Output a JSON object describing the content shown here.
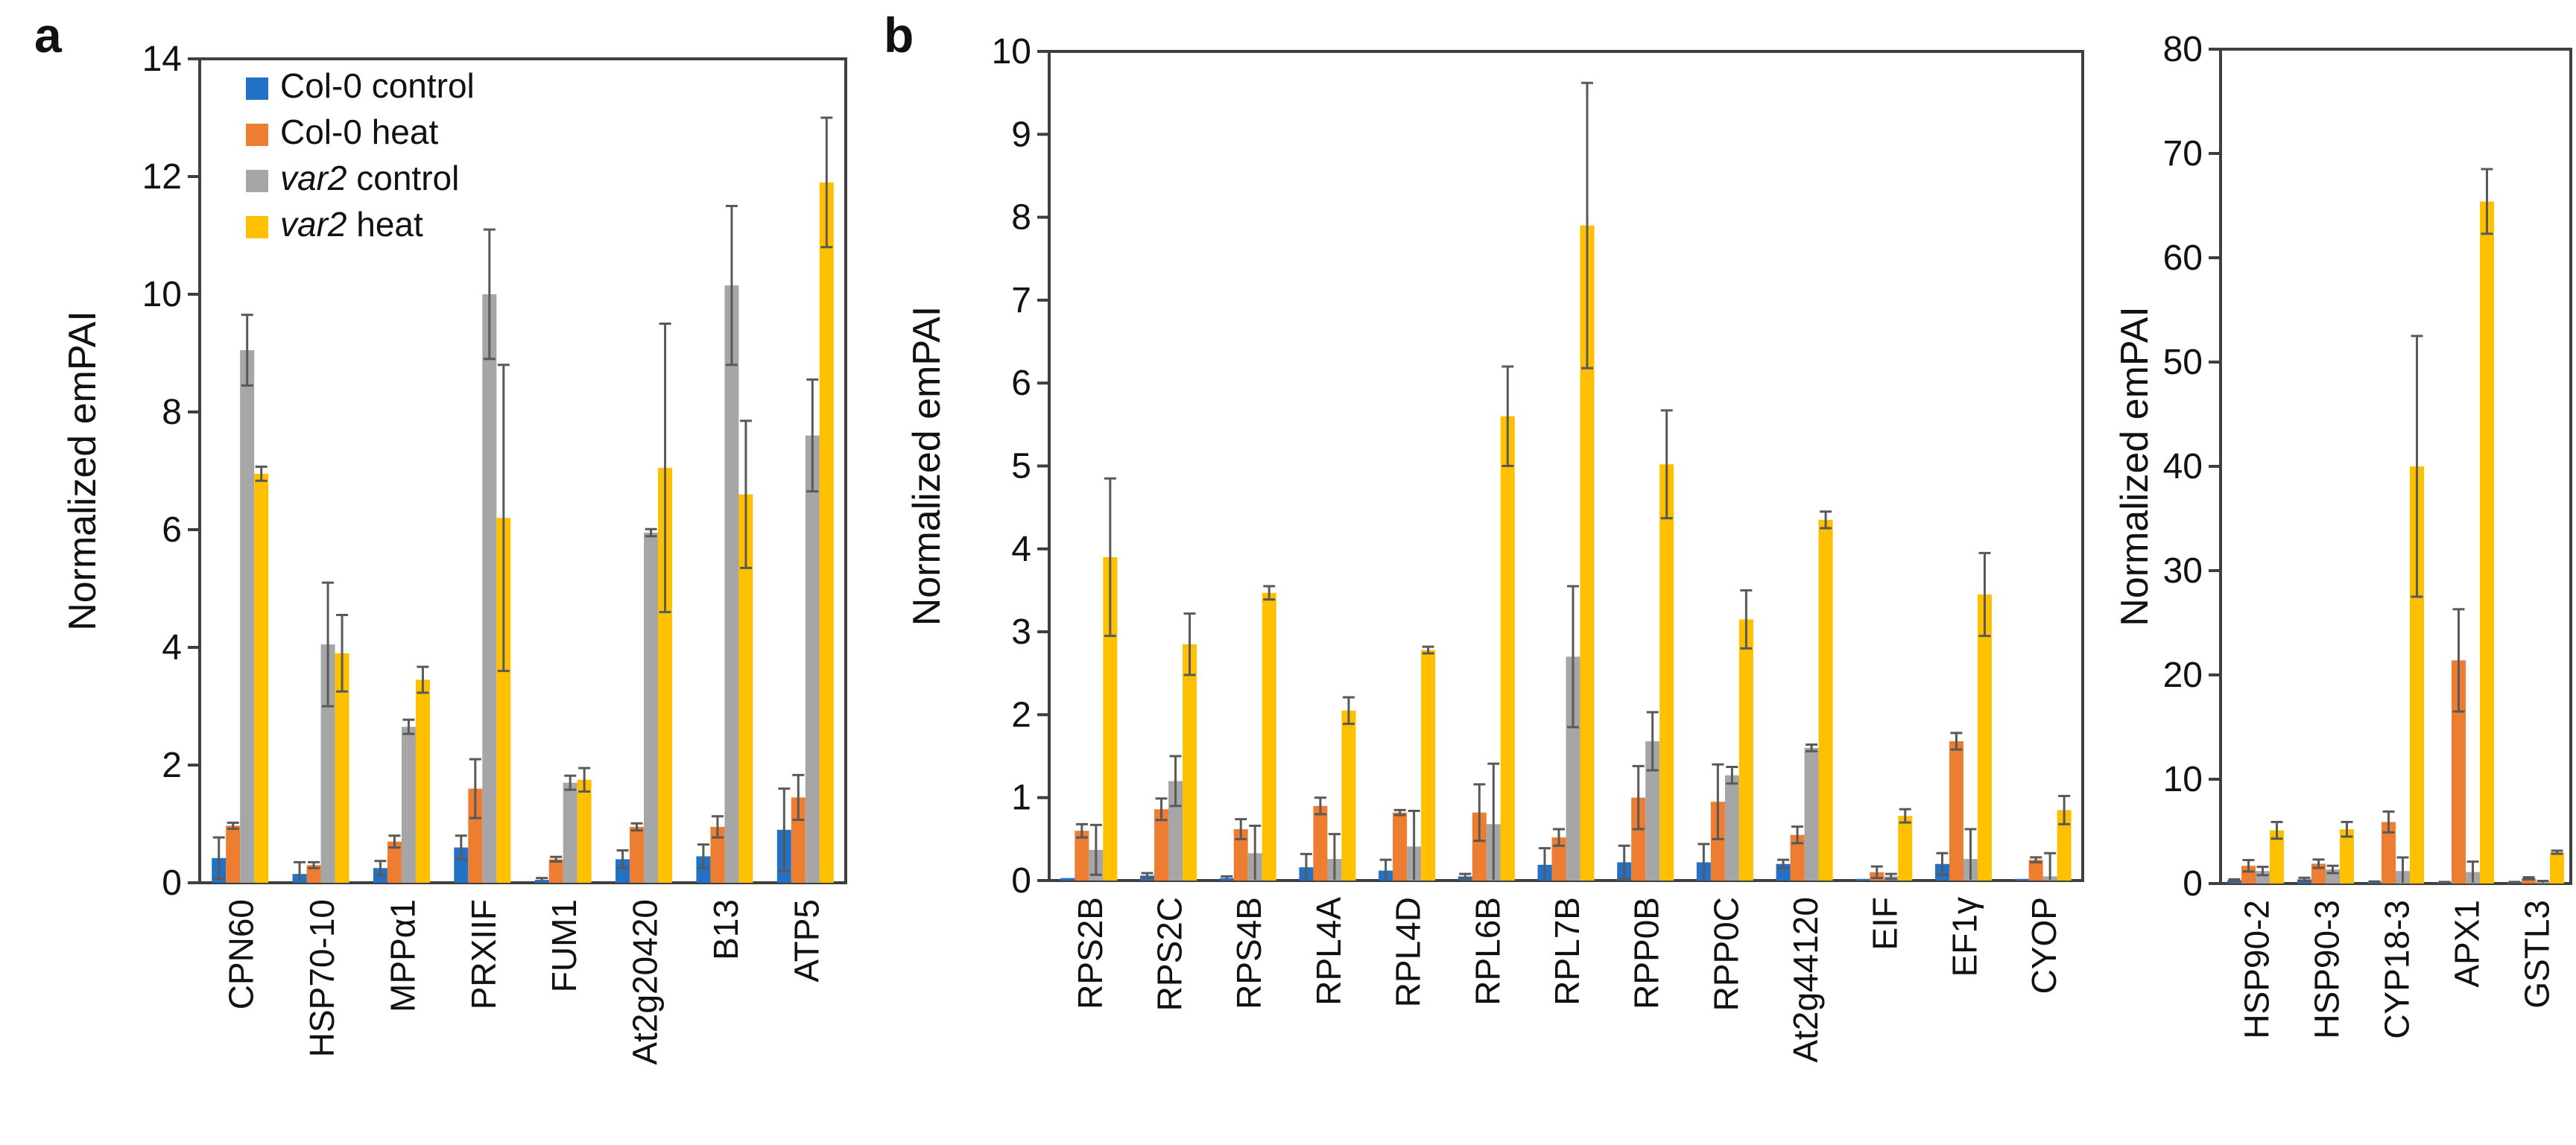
{
  "figure": {
    "background": "#ffffff",
    "panels": {
      "a": {
        "label": "a"
      },
      "b": {
        "label": "b"
      }
    }
  },
  "colors": {
    "col0_control": "#2271C7",
    "col0_heat": "#ED7D31",
    "var2_control": "#A6A6A6",
    "var2_heat": "#FFC000",
    "error_bar": "#595959",
    "axis": "#3F3F3F",
    "text": "#111111"
  },
  "legend": {
    "items": [
      {
        "italic": "",
        "text": "Col-0 control",
        "series": "col0_control"
      },
      {
        "italic": "",
        "text": "Col-0 heat",
        "series": "col0_heat"
      },
      {
        "italic": "var2",
        "text": " control",
        "series": "var2_control"
      },
      {
        "italic": "var2",
        "text": " heat",
        "series": "var2_heat"
      }
    ]
  },
  "chart_data": [
    {
      "id": "panel-a",
      "type": "bar",
      "title": "",
      "xlabel": "",
      "ylabel": "Normalized emPAI",
      "ylim": [
        0,
        14
      ],
      "ytick_step": 2,
      "grid": false,
      "legend_position": "top-left",
      "categories": [
        "CPN60",
        "HSP70-10",
        "MPPα1",
        "PRXIIF",
        "FUM1",
        "At2g20420",
        "B13",
        "ATP5"
      ],
      "series": [
        {
          "name": "Col-0 control",
          "color_key": "col0_control",
          "values": [
            0.42,
            0.15,
            0.25,
            0.6,
            0.05,
            0.4,
            0.45,
            0.9
          ],
          "errors": [
            0.35,
            0.2,
            0.12,
            0.2,
            0.03,
            0.15,
            0.2,
            0.7
          ]
        },
        {
          "name": "Col-0 heat",
          "color_key": "col0_heat",
          "values": [
            0.97,
            0.3,
            0.7,
            1.6,
            0.4,
            0.95,
            0.95,
            1.45
          ],
          "errors": [
            0.05,
            0.05,
            0.1,
            0.5,
            0.04,
            0.06,
            0.18,
            0.38
          ]
        },
        {
          "name": "var2 control",
          "color_key": "var2_control",
          "values": [
            9.05,
            4.05,
            2.65,
            10.0,
            1.7,
            5.95,
            10.15,
            7.6
          ],
          "errors": [
            0.6,
            1.05,
            0.12,
            1.1,
            0.12,
            0.06,
            1.35,
            0.95
          ]
        },
        {
          "name": "var2 heat",
          "color_key": "var2_heat",
          "values": [
            6.95,
            3.9,
            3.45,
            6.2,
            1.75,
            7.05,
            6.6,
            11.9
          ],
          "errors": [
            0.12,
            0.65,
            0.22,
            2.6,
            0.2,
            2.45,
            1.25,
            1.1
          ]
        }
      ]
    },
    {
      "id": "panel-b-left",
      "type": "bar",
      "title": "",
      "xlabel": "",
      "ylabel": "Normalized emPAI",
      "ylim": [
        0,
        10
      ],
      "ytick_step": 1,
      "grid": false,
      "legend_position": null,
      "categories": [
        "RPS2B",
        "RPS2C",
        "RPS4B",
        "RPL4A",
        "RPL4D",
        "RPL6B",
        "RPL7B",
        "RPP0B",
        "RPP0C",
        "At2g44120",
        "EIF",
        "EF1γ",
        "CYOP"
      ],
      "series": [
        {
          "name": "Col-0 control",
          "color_key": "col0_control",
          "values": [
            0.03,
            0.06,
            0.03,
            0.16,
            0.12,
            0.05,
            0.19,
            0.22,
            0.22,
            0.2,
            0.02,
            0.2,
            0.02
          ],
          "errors": [
            0.0,
            0.03,
            0.02,
            0.16,
            0.13,
            0.03,
            0.2,
            0.2,
            0.22,
            0.05,
            0.0,
            0.13,
            0.0
          ]
        },
        {
          "name": "Col-0 heat",
          "color_key": "col0_heat",
          "values": [
            0.6,
            0.86,
            0.62,
            0.9,
            0.82,
            0.82,
            0.52,
            1.0,
            0.95,
            0.55,
            0.1,
            1.68,
            0.25
          ],
          "errors": [
            0.08,
            0.13,
            0.12,
            0.1,
            0.03,
            0.34,
            0.1,
            0.38,
            0.45,
            0.1,
            0.07,
            0.1,
            0.03
          ]
        },
        {
          "name": "var2 control",
          "color_key": "var2_control",
          "values": [
            0.37,
            1.2,
            0.33,
            0.26,
            0.41,
            0.68,
            2.7,
            1.68,
            1.27,
            1.6,
            0.05,
            0.26,
            0.05
          ],
          "errors": [
            0.3,
            0.3,
            0.33,
            0.3,
            0.43,
            0.73,
            0.85,
            0.35,
            0.1,
            0.04,
            0.03,
            0.36,
            0.28
          ]
        },
        {
          "name": "var2 heat",
          "color_key": "var2_heat",
          "values": [
            3.9,
            2.85,
            3.47,
            2.05,
            2.78,
            5.6,
            7.9,
            5.02,
            3.15,
            4.35,
            0.78,
            3.45,
            0.85
          ],
          "errors": [
            0.95,
            0.37,
            0.08,
            0.16,
            0.04,
            0.6,
            1.72,
            0.65,
            0.35,
            0.1,
            0.08,
            0.5,
            0.17
          ]
        }
      ]
    },
    {
      "id": "panel-b-right",
      "type": "bar",
      "title": "",
      "xlabel": "",
      "ylabel": "Normalized emPAI",
      "ylim": [
        0,
        80
      ],
      "ytick_step": 10,
      "grid": false,
      "legend_position": null,
      "categories": [
        "HSP90-2",
        "HSP90-3",
        "CYP18-3",
        "APX1",
        "GSTL3"
      ],
      "series": [
        {
          "name": "Col-0 control",
          "color_key": "col0_control",
          "values": [
            0.3,
            0.4,
            0.15,
            0.1,
            0.1
          ],
          "errors": [
            0.1,
            0.15,
            0.05,
            0.05,
            0.05
          ]
        },
        {
          "name": "Col-0 heat",
          "color_key": "col0_heat",
          "values": [
            1.7,
            1.9,
            5.9,
            21.4,
            0.5
          ],
          "errors": [
            0.55,
            0.4,
            1.0,
            4.9,
            0.1
          ]
        },
        {
          "name": "var2 control",
          "color_key": "var2_control",
          "values": [
            1.2,
            1.35,
            1.2,
            1.1,
            0.15
          ],
          "errors": [
            0.4,
            0.35,
            1.3,
            1.0,
            0.1
          ]
        },
        {
          "name": "var2 heat",
          "color_key": "var2_heat",
          "values": [
            5.1,
            5.2,
            40.0,
            65.4,
            3.0
          ],
          "errors": [
            0.8,
            0.7,
            12.5,
            3.1,
            0.15
          ]
        }
      ]
    }
  ]
}
